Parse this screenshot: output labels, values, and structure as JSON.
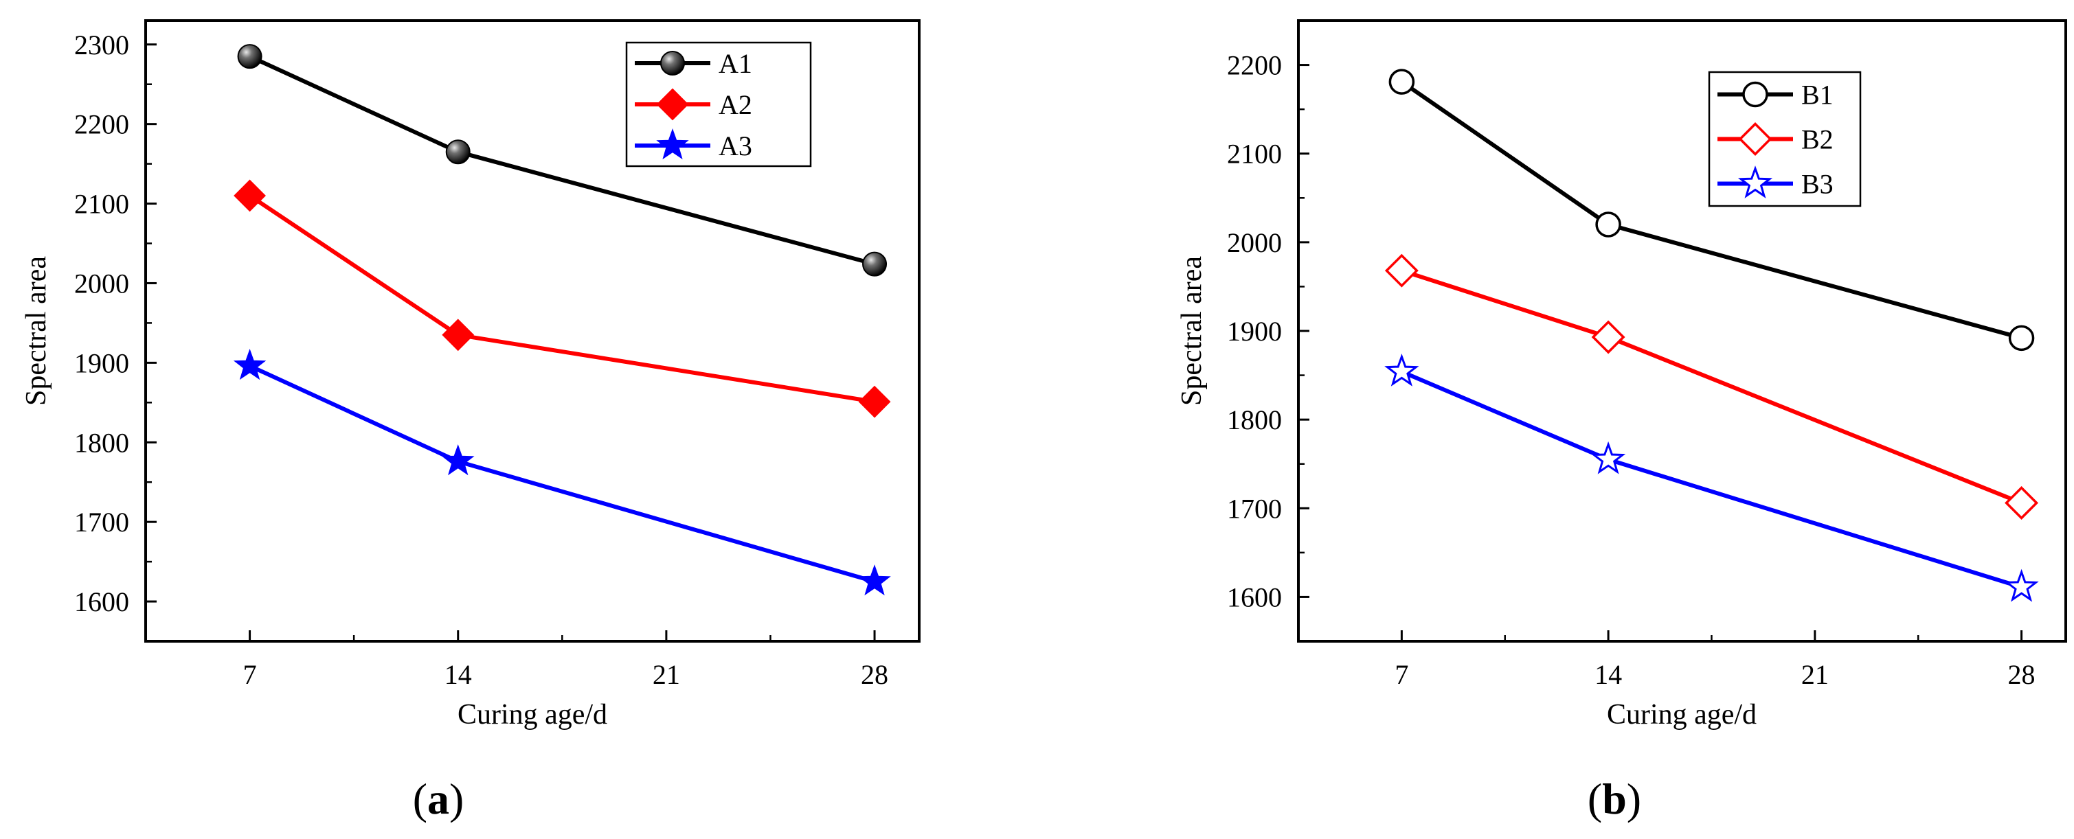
{
  "chart_data": [
    {
      "panel_label": "a",
      "type": "line",
      "x": [
        7,
        14,
        28
      ],
      "xticks": [
        7,
        14,
        21,
        28
      ],
      "xlim": [
        3.5,
        29.5
      ],
      "ylim": [
        1550,
        2330
      ],
      "yticks": [
        1600,
        1700,
        1800,
        1900,
        2000,
        2100,
        2200,
        2300
      ],
      "xlabel": "Curing age/d",
      "ylabel": "Spectral area",
      "legend_position": "top-right",
      "series": [
        {
          "name": "A1",
          "values": [
            2285,
            2165,
            2024
          ],
          "color": "#000000",
          "marker": "sphere"
        },
        {
          "name": "A2",
          "values": [
            2110,
            1935,
            1851
          ],
          "color": "#ff0000",
          "marker": "filled-diamond"
        },
        {
          "name": "A3",
          "values": [
            1896,
            1776,
            1625
          ],
          "color": "#0000ff",
          "marker": "filled-star"
        }
      ]
    },
    {
      "panel_label": "b",
      "type": "line",
      "x": [
        7,
        14,
        28
      ],
      "xticks": [
        7,
        14,
        21,
        28
      ],
      "xlim": [
        3.5,
        29.5
      ],
      "ylim": [
        1550,
        2250
      ],
      "yticks": [
        1600,
        1700,
        1800,
        1900,
        2000,
        2100,
        2200
      ],
      "xlabel": "Curing age/d",
      "ylabel": "Spectral area",
      "legend_position": "top-right",
      "series": [
        {
          "name": "B1",
          "values": [
            2181,
            2020,
            1892
          ],
          "color": "#000000",
          "marker": "open-circle"
        },
        {
          "name": "B2",
          "values": [
            1968,
            1893,
            1706
          ],
          "color": "#ff0000",
          "marker": "open-diamond"
        },
        {
          "name": "B3",
          "values": [
            1854,
            1755,
            1611
          ],
          "color": "#0000ff",
          "marker": "open-star"
        }
      ]
    }
  ]
}
